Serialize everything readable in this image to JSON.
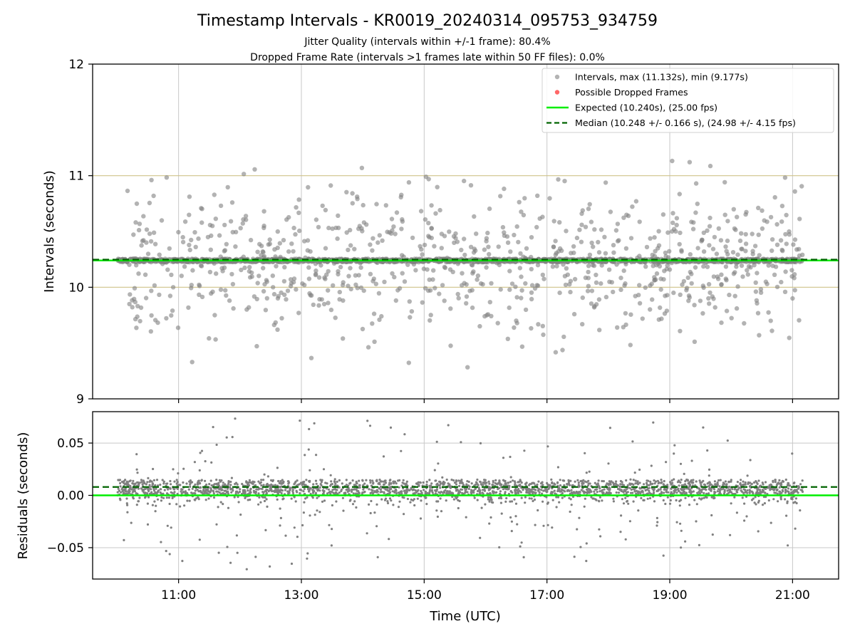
{
  "title": "Timestamp Intervals - KR0019_20240314_095753_934759",
  "subtitle_1": "Jitter Quality (intervals within +/-1 frame): 80.4%",
  "subtitle_2": "Dropped Frame Rate (intervals >1 frames late within 50 FF files): 0.0%",
  "colors": {
    "intervals": "#808080",
    "dropped": "#ff4c4c",
    "expected": "#00ee00",
    "median": "#006400",
    "reference_lines": "#cfc28a",
    "grid": "#c8c8c8"
  },
  "chart_data": [
    {
      "type": "scatter",
      "panel": "intervals",
      "ylabel": "Intervals (seconds)",
      "xlim": [
        "09:36",
        "21:45"
      ],
      "ylim": [
        9,
        12
      ],
      "y_ticks": [
        "9",
        "10",
        "11",
        "12"
      ],
      "grid": true,
      "legend_position": "top-right",
      "legend": [
        "Intervals, max (11.132s), min (9.177s)",
        "Possible Dropped Frames",
        "Expected (10.240s), (25.00 fps)",
        "Median (10.248 +/- 0.166 s), (24.98 +/- 4.15 fps)"
      ],
      "series": [
        {
          "name": "Intervals",
          "summary": {
            "max": 11.132,
            "min": 9.177
          }
        },
        {
          "name": "Possible Dropped Frames",
          "points": []
        }
      ],
      "reference_lines": [
        {
          "name": "Expected",
          "y": 10.24
        },
        {
          "name": "Median",
          "y": 10.248
        },
        {
          "y": 10.0
        },
        {
          "y": 11.0
        }
      ],
      "x_span": [
        "10:00",
        "21:10"
      ]
    },
    {
      "type": "scatter",
      "panel": "residuals",
      "xlabel": "Time (UTC)",
      "ylabel": "Residuals (seconds)",
      "x_ticks": [
        "11:00",
        "13:00",
        "15:00",
        "17:00",
        "19:00",
        "21:00"
      ],
      "y_ticks": [
        "−0.05",
        "0.00",
        "0.05"
      ],
      "ylim": [
        -0.08,
        0.08
      ],
      "grid": true,
      "reference_lines": [
        {
          "name": "Expected",
          "y": 0.0
        },
        {
          "name": "Median",
          "y": 0.008
        }
      ]
    }
  ]
}
